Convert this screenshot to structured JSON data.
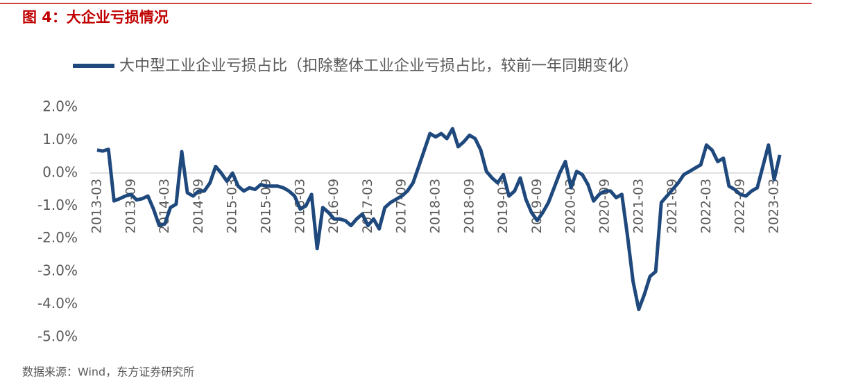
{
  "chart_data": {
    "type": "line",
    "title": "图 4：大企业亏损情况",
    "source": "数据来源：Wind，东方证券研究所",
    "categories": [
      "2013-03",
      null,
      null,
      null,
      null,
      null,
      "2013-09",
      null,
      null,
      null,
      null,
      null,
      "2014-03",
      null,
      null,
      null,
      null,
      null,
      "2014-09",
      null,
      null,
      null,
      null,
      null,
      "2015-03",
      null,
      null,
      null,
      null,
      null,
      "2015-09",
      null,
      null,
      null,
      null,
      null,
      "2016-03",
      null,
      null,
      null,
      null,
      null,
      "2016-09",
      null,
      null,
      null,
      null,
      null,
      "2017-03",
      null,
      null,
      null,
      null,
      null,
      "2017-09",
      null,
      null,
      null,
      null,
      null,
      "2018-03",
      null,
      null,
      null,
      null,
      null,
      "2018-09",
      null,
      null,
      null,
      null,
      null,
      "2019-03",
      null,
      null,
      null,
      null,
      null,
      "2019-09",
      null,
      null,
      null,
      null,
      null,
      "2020-03",
      null,
      null,
      null,
      null,
      null,
      "2020-09",
      null,
      null,
      null,
      null,
      null,
      "2021-03",
      null,
      null,
      null,
      null,
      null,
      "2021-09",
      null,
      null,
      null,
      null,
      null,
      "2022-03",
      null,
      null,
      null,
      null,
      null,
      "2022-09",
      null,
      null,
      null,
      null,
      null,
      "2023-03",
      null
    ],
    "series": [
      {
        "name": "大中型工业企业亏损占比（扣除整体工业企业亏损占比，较前一年同期变化）",
        "color": "#1f497d",
        "values": [
          0.7,
          0.67,
          0.72,
          -0.85,
          -0.78,
          -0.7,
          -0.65,
          -0.82,
          -0.78,
          -0.7,
          -1.1,
          -1.6,
          -1.55,
          -1.05,
          -0.95,
          0.65,
          -0.6,
          -0.7,
          -0.55,
          -0.55,
          -0.3,
          0.2,
          0.0,
          -0.25,
          0.0,
          -0.4,
          -0.55,
          -0.45,
          -0.5,
          -0.35,
          -0.4,
          -0.4,
          -0.4,
          -0.45,
          -0.55,
          -0.7,
          -1.1,
          -1.0,
          -0.65,
          -2.3,
          -1.05,
          -1.2,
          -1.4,
          -1.4,
          -1.45,
          -1.6,
          -1.4,
          -1.25,
          -1.6,
          -1.4,
          -1.7,
          -1.05,
          -0.9,
          -0.8,
          -0.7,
          -0.55,
          -0.3,
          0.2,
          0.7,
          1.2,
          1.1,
          1.2,
          1.05,
          1.35,
          0.8,
          0.95,
          1.15,
          1.05,
          0.7,
          0.05,
          -0.15,
          -0.3,
          -0.05,
          -0.7,
          -0.55,
          -0.15,
          -0.8,
          -1.2,
          -1.45,
          -1.2,
          -0.9,
          -0.45,
          0.0,
          0.35,
          -0.45,
          0.05,
          -0.05,
          -0.35,
          -0.85,
          -0.65,
          -0.55,
          -0.55,
          -0.75,
          -0.65,
          -1.9,
          -3.3,
          -4.15,
          -3.7,
          -3.15,
          -3.0,
          -0.9,
          -0.7,
          -0.5,
          -0.3,
          -0.05,
          0.05,
          0.15,
          0.25,
          0.85,
          0.7,
          0.35,
          0.45,
          -0.4,
          -0.5,
          -0.65,
          -0.7,
          -0.55,
          -0.45,
          0.2,
          0.85,
          -0.2,
          0.55
        ]
      }
    ],
    "ylim": [
      -5,
      2
    ],
    "yticks": [
      {
        "value": -5,
        "label": "-5.0%"
      },
      {
        "value": -4,
        "label": "-4.0%"
      },
      {
        "value": -3,
        "label": "-3.0%"
      },
      {
        "value": -2,
        "label": "-2.0%"
      },
      {
        "value": -1,
        "label": "-1.0%"
      },
      {
        "value": 0,
        "label": "0.0%"
      },
      {
        "value": 1,
        "label": "1.0%"
      },
      {
        "value": 2,
        "label": "2.0%"
      }
    ],
    "grid": false
  }
}
